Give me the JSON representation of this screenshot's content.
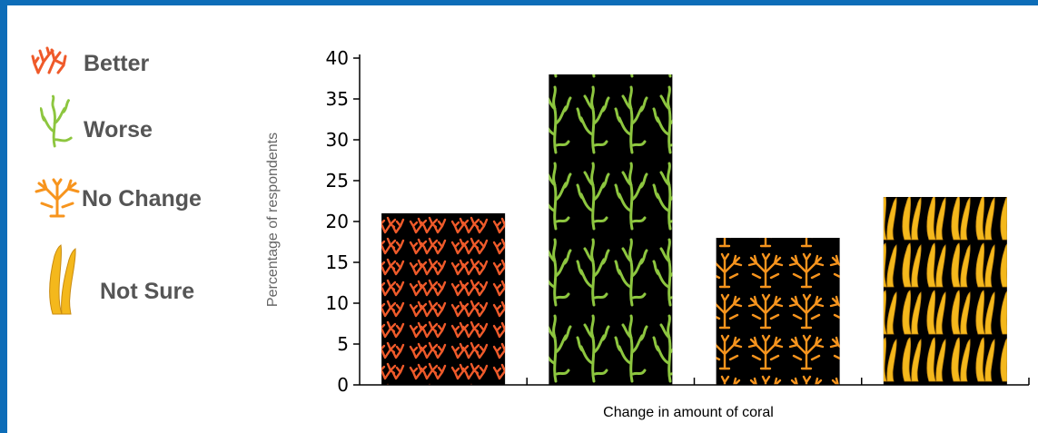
{
  "chart_data": {
    "type": "bar",
    "categories": [
      "Better",
      "Worse",
      "No Change",
      "Not Sure"
    ],
    "values": [
      21,
      38,
      18,
      23
    ],
    "xlabel": "Change in amount of coral",
    "ylabel": "Percentage of respondents",
    "ylim": [
      0,
      40
    ],
    "yticks": [
      0,
      5,
      10,
      15,
      20,
      25,
      30,
      35,
      40
    ],
    "grid": false,
    "legend_placement": "left",
    "bar_background": "#000000",
    "series_colors": [
      "#ef5a2a",
      "#8dc63f",
      "#f7941d",
      "#f4b81c"
    ],
    "icons": [
      "branching-coral-icon",
      "seaweed-icon",
      "fan-coral-icon",
      "kelp-icon"
    ]
  },
  "legend": [
    {
      "label": "Better",
      "icon": "branching-coral-icon",
      "color": "#ef5a2a"
    },
    {
      "label": "Worse",
      "icon": "seaweed-icon",
      "color": "#8dc63f"
    },
    {
      "label": "No Change",
      "icon": "fan-coral-icon",
      "color": "#f7941d"
    },
    {
      "label": "Not Sure",
      "icon": "kelp-icon",
      "color": "#f4b81c"
    }
  ],
  "frame_color": "#0d6db8"
}
